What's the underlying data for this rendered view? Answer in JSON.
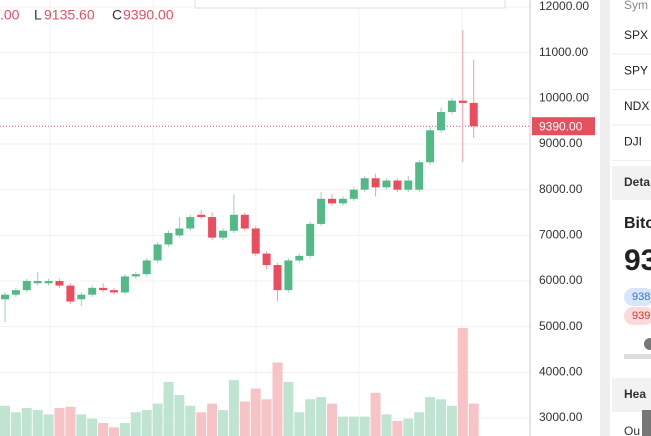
{
  "header": {
    "open_tail": ".00",
    "low_key": "L",
    "low": "9135.60",
    "close_key": "C",
    "close": "9390.00"
  },
  "price_axis": {
    "ylim": [
      3000,
      12000
    ],
    "ticks": [
      {
        "value": 3000,
        "label": "3000.00"
      },
      {
        "value": 4000,
        "label": "4000.00"
      },
      {
        "value": 5000,
        "label": "5000.00"
      },
      {
        "value": 6000,
        "label": "6000.00"
      },
      {
        "value": 7000,
        "label": "7000.00"
      },
      {
        "value": 8000,
        "label": "8000.00"
      },
      {
        "value": 9000,
        "label": "9000.00"
      },
      {
        "value": 10000,
        "label": "10000.00"
      },
      {
        "value": 11000,
        "label": "11000.00"
      },
      {
        "value": 12000,
        "label": "12000.00"
      }
    ],
    "last_price": {
      "value": 9390,
      "label": "9390.00"
    }
  },
  "candles": [
    {
      "o": 5600,
      "h": 5750,
      "l": 5100,
      "c": 5700,
      "v": 28
    },
    {
      "o": 5700,
      "h": 5850,
      "l": 5650,
      "c": 5800,
      "v": 22
    },
    {
      "o": 5800,
      "h": 6050,
      "l": 5750,
      "c": 6000,
      "v": 26
    },
    {
      "o": 5950,
      "h": 6200,
      "l": 5900,
      "c": 6000,
      "v": 24
    },
    {
      "o": 5950,
      "h": 6050,
      "l": 5900,
      "c": 6000,
      "v": 20
    },
    {
      "o": 6000,
      "h": 6050,
      "l": 5850,
      "c": 5900,
      "v": 26
    },
    {
      "o": 5900,
      "h": 5950,
      "l": 5500,
      "c": 5550,
      "v": 27
    },
    {
      "o": 5600,
      "h": 5750,
      "l": 5450,
      "c": 5700,
      "v": 20
    },
    {
      "o": 5700,
      "h": 5900,
      "l": 5650,
      "c": 5850,
      "v": 16
    },
    {
      "o": 5850,
      "h": 5950,
      "l": 5750,
      "c": 5800,
      "v": 12
    },
    {
      "o": 5800,
      "h": 5850,
      "l": 5700,
      "c": 5750,
      "v": 8
    },
    {
      "o": 5750,
      "h": 6150,
      "l": 5700,
      "c": 6100,
      "v": 12
    },
    {
      "o": 6100,
      "h": 6200,
      "l": 6050,
      "c": 6150,
      "v": 22
    },
    {
      "o": 6150,
      "h": 6500,
      "l": 6100,
      "c": 6450,
      "v": 24
    },
    {
      "o": 6450,
      "h": 6850,
      "l": 6400,
      "c": 6800,
      "v": 30
    },
    {
      "o": 6800,
      "h": 7100,
      "l": 6750,
      "c": 7050,
      "v": 50
    },
    {
      "o": 7000,
      "h": 7400,
      "l": 6950,
      "c": 7150,
      "v": 38
    },
    {
      "o": 7150,
      "h": 7450,
      "l": 7100,
      "c": 7400,
      "v": 28
    },
    {
      "o": 7450,
      "h": 7550,
      "l": 7350,
      "c": 7400,
      "v": 22
    },
    {
      "o": 7400,
      "h": 7500,
      "l": 6900,
      "c": 6950,
      "v": 30
    },
    {
      "o": 6950,
      "h": 7150,
      "l": 6900,
      "c": 7100,
      "v": 24
    },
    {
      "o": 7100,
      "h": 7900,
      "l": 7050,
      "c": 7450,
      "v": 52
    },
    {
      "o": 7450,
      "h": 7500,
      "l": 7100,
      "c": 7150,
      "v": 32
    },
    {
      "o": 7150,
      "h": 7200,
      "l": 6550,
      "c": 6600,
      "v": 44
    },
    {
      "o": 6600,
      "h": 6650,
      "l": 6250,
      "c": 6350,
      "v": 34
    },
    {
      "o": 6350,
      "h": 6400,
      "l": 5550,
      "c": 5800,
      "v": 68
    },
    {
      "o": 5800,
      "h": 6500,
      "l": 5750,
      "c": 6450,
      "v": 50
    },
    {
      "o": 6450,
      "h": 6600,
      "l": 6400,
      "c": 6550,
      "v": 22
    },
    {
      "o": 6550,
      "h": 7300,
      "l": 6500,
      "c": 7250,
      "v": 34
    },
    {
      "o": 7250,
      "h": 7950,
      "l": 7200,
      "c": 7800,
      "v": 36
    },
    {
      "o": 7800,
      "h": 7900,
      "l": 7650,
      "c": 7700,
      "v": 30
    },
    {
      "o": 7700,
      "h": 7850,
      "l": 7650,
      "c": 7800,
      "v": 18
    },
    {
      "o": 7800,
      "h": 8050,
      "l": 7750,
      "c": 8000,
      "v": 18
    },
    {
      "o": 8000,
      "h": 8300,
      "l": 7950,
      "c": 8250,
      "v": 18
    },
    {
      "o": 8250,
      "h": 8350,
      "l": 7850,
      "c": 8050,
      "v": 40
    },
    {
      "o": 8050,
      "h": 8250,
      "l": 8000,
      "c": 8200,
      "v": 20
    },
    {
      "o": 8200,
      "h": 8250,
      "l": 7950,
      "c": 8000,
      "v": 14
    },
    {
      "o": 8000,
      "h": 8300,
      "l": 7950,
      "c": 8200,
      "v": 16
    },
    {
      "o": 8000,
      "h": 8650,
      "l": 7950,
      "c": 8600,
      "v": 22
    },
    {
      "o": 8600,
      "h": 9400,
      "l": 8550,
      "c": 9300,
      "v": 36
    },
    {
      "o": 9300,
      "h": 9800,
      "l": 9250,
      "c": 9700,
      "v": 34
    },
    {
      "o": 9700,
      "h": 10000,
      "l": 9650,
      "c": 9950,
      "v": 28
    },
    {
      "o": 9950,
      "h": 11500,
      "l": 8600,
      "c": 9900,
      "v": 100
    },
    {
      "o": 9900,
      "h": 10850,
      "l": 9135.6,
      "c": 9390,
      "v": 30
    }
  ],
  "panel": {
    "header": "Sym",
    "symbols": [
      "SPX",
      "SPY",
      "NDX",
      "DJI"
    ],
    "details": "Deta",
    "name": "Bitc",
    "price": "93",
    "bid": "938",
    "ask": "939",
    "headlines": "Hea",
    "bottom": "Ou"
  }
}
